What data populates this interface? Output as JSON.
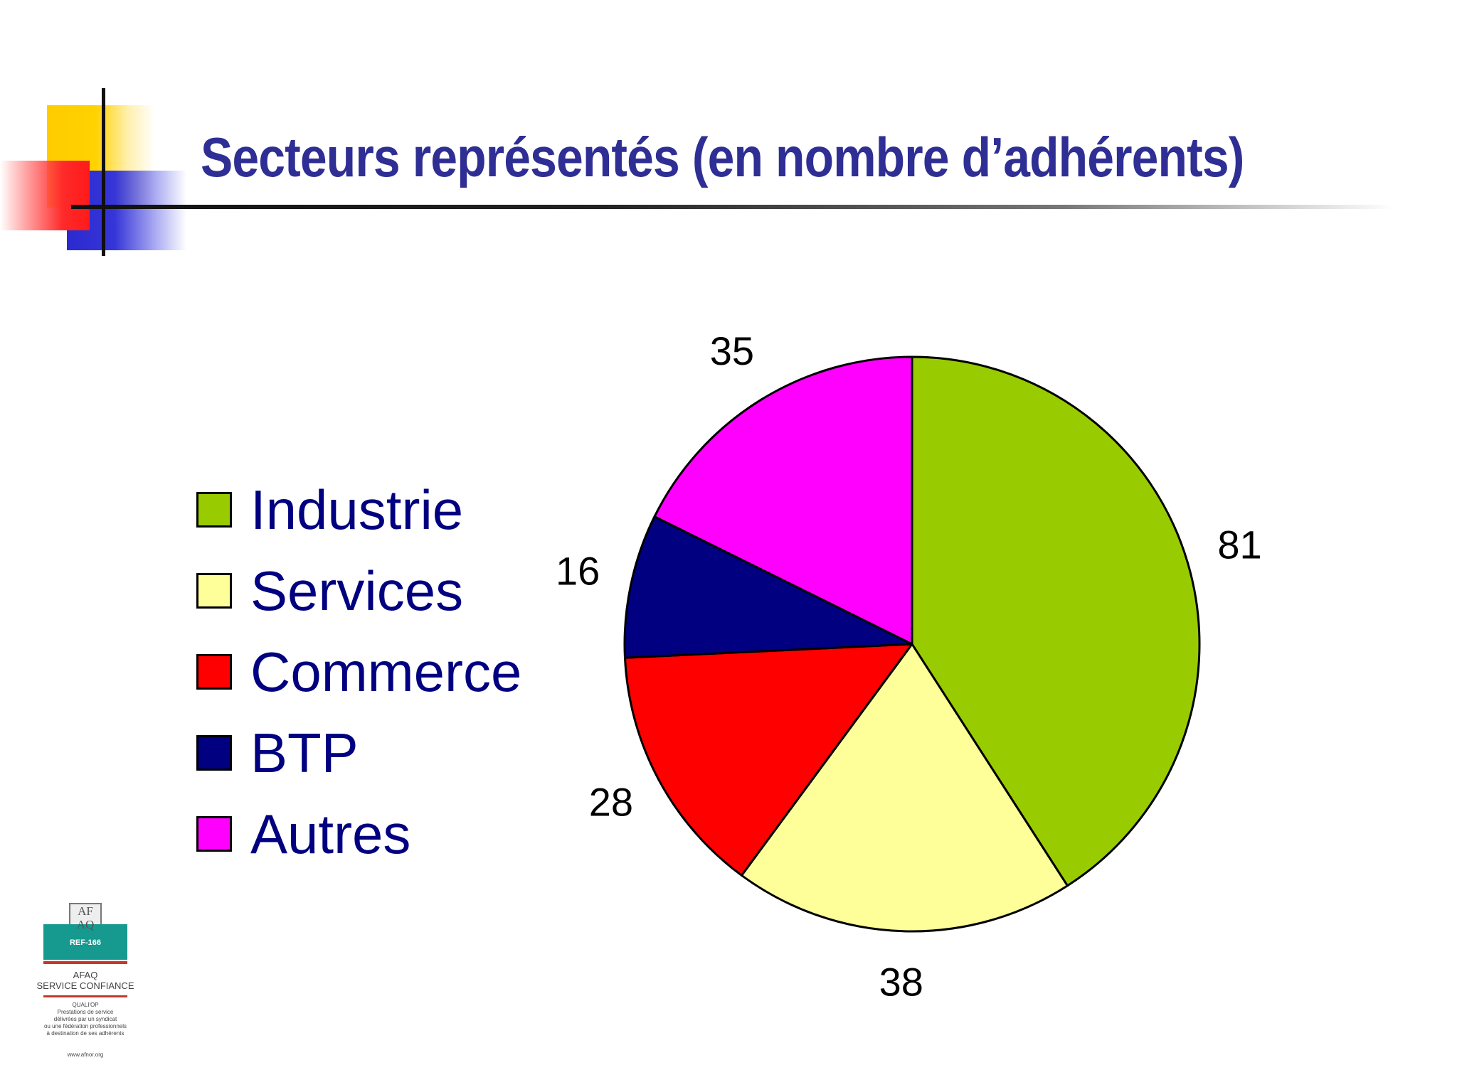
{
  "title": "Secteurs représentés (en nombre d’adhérents)",
  "chart_data": {
    "type": "pie",
    "categories": [
      "Industrie",
      "Services",
      "Commerce",
      "BTP",
      "Autres"
    ],
    "values": [
      81,
      38,
      28,
      16,
      35
    ],
    "colors": [
      "#99cc00",
      "#ffff99",
      "#ff0000",
      "#000080",
      "#ff00ff"
    ],
    "start_angle": "12 o'clock",
    "direction": "clockwise",
    "legend_position": "left"
  },
  "logo": {
    "mark_line1": "AF",
    "mark_line2": "AQ",
    "ref": "REF-166",
    "name_line1": "AFAQ",
    "name_line2": "SERVICE CONFIANCE",
    "cert_title": "QUALI'OP",
    "cert_line1": "Prestations de service",
    "cert_line2": "délivrées par un syndicat",
    "cert_line3": "ou une fédération professionnels",
    "cert_line4": "à destination de ses adhérents",
    "url": "www.afnor.org"
  }
}
